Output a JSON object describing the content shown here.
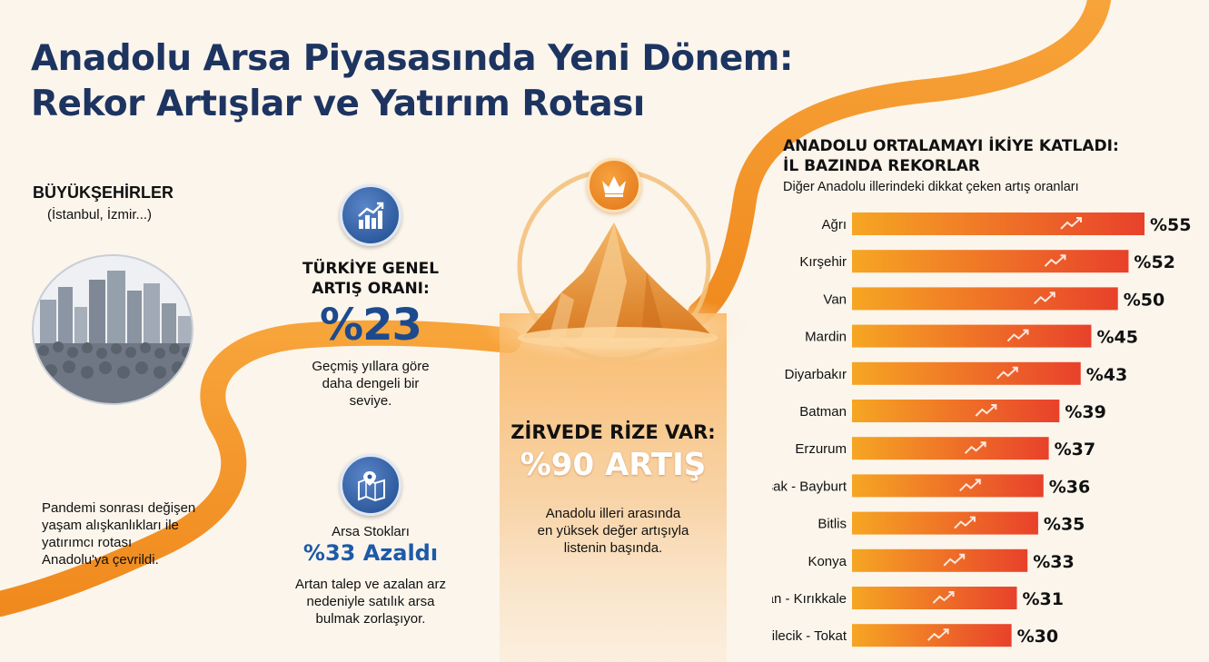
{
  "title": {
    "line1": "Anadolu Arsa Piyasasında Yeni Dönem:",
    "line2": "Rekor Artışlar ve Yatırım Rotası"
  },
  "buyuksehirler": {
    "title": "BÜYÜKŞEHİRLER",
    "subtitle": "(İstanbul, İzmir...)"
  },
  "pandemi_text": {
    "line1": "Pandemi sonrası değişen",
    "line2": "yaşam alışkanlıkları ile",
    "line3": "yatırımcı rotası",
    "line4": "Anadolu'ya çevrildi."
  },
  "turkiye_genel": {
    "title_line1": "TÜRKİYE GENEL",
    "title_line2": "ARTIŞ ORANI:",
    "value": "%23",
    "desc_line1": "Geçmiş yıllara göre",
    "desc_line2": "daha dengeli bir",
    "desc_line3": "seviye."
  },
  "arsa_stoklari": {
    "title": "Arsa Stokları",
    "value": "%33 Azaldı",
    "desc_line1": "Artan talep ve azalan arz",
    "desc_line2": "nedeniyle satılık arsa",
    "desc_line3": "bulmak zorlaşıyor."
  },
  "zirve": {
    "title": "ZİRVEDE RİZE VAR:",
    "value": "%90 ARTIŞ",
    "desc_line1": "Anadolu illeri arasında",
    "desc_line2": "en yüksek değer artışıyla",
    "desc_line3": "listenin başında."
  },
  "right_panel": {
    "title_line1": "ANADOLU ORTALAMAYI İKİYE KATLADI:",
    "title_line2": "İL BAZINDA REKORLAR",
    "subtitle": "Diğer Anadolu illerindeki dikkat çeken artış oranları"
  },
  "icons": {
    "chart": "trend-up-icon",
    "map": "map-pin-icon",
    "crown": "crown-icon",
    "city": "city-crowd-icon",
    "bar_arrow": "trend-arrow-icon"
  },
  "colors": {
    "navy": "#1d3461",
    "blue": "#1d4a8c",
    "orange": "#f39a2b",
    "bar_start": "#f6a623",
    "bar_end": "#e8412b"
  },
  "chart_data": {
    "type": "bar",
    "orientation": "horizontal",
    "categories": [
      "Ağrı",
      "Kırşehir",
      "Van",
      "Mardin",
      "Diyarbakır",
      "Batman",
      "Erzurum",
      "Manisa - Uşak - Bayburt",
      "Bitlis",
      "Konya",
      "Erzincan - Kırıkkale",
      "Bilecik - Tokat"
    ],
    "values": [
      55,
      52,
      50,
      45,
      43,
      39,
      37,
      36,
      35,
      33,
      31,
      30
    ],
    "value_labels": [
      "%55",
      "%52",
      "%50",
      "%45",
      "%43",
      "%39",
      "%37",
      "%36",
      "%35",
      "%33",
      "%31",
      "%30"
    ],
    "unit": "%",
    "xlim": [
      0,
      55
    ],
    "grid": false,
    "legend": "none"
  }
}
